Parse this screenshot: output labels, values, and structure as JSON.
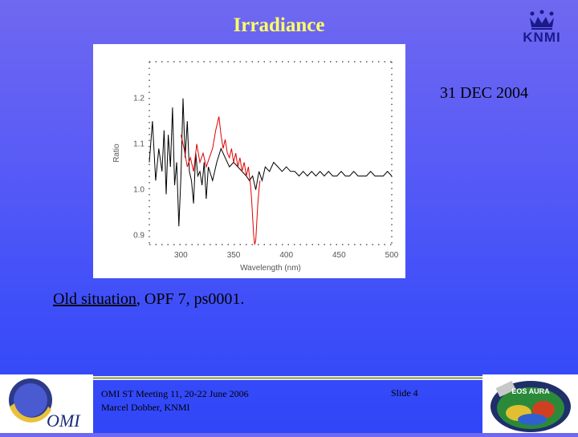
{
  "slide": {
    "title": "Irradiance",
    "date": "31 DEC 2004",
    "caption_underlined": "Old situation",
    "caption_rest": ", OPF 7, ps0001.",
    "footer_line1": "OMI ST Meeting 11, 20-22 June 2006",
    "footer_line2": "Marcel Dobber, KNMI",
    "slide_number": "Slide 4",
    "knmi_logo_text": "KNMI",
    "omi_logo_text": "OMI",
    "aura_logo_text": "EOS AURA",
    "colors": {
      "title": "#ffff66",
      "background_top": "#6f68f0",
      "background_bottom": "#2f46f8",
      "series_black": "#000000",
      "series_red": "#e00000"
    }
  },
  "chart_data": {
    "type": "line",
    "xlabel": "Wavelength (nm)",
    "ylabel": "Ratio",
    "xlim": [
      270,
      500
    ],
    "ylim": [
      0.88,
      1.28
    ],
    "xticks": [
      "300",
      "350",
      "400",
      "450",
      "500"
    ],
    "yticks": [
      "0.9",
      "1.0",
      "1.1",
      "1.2"
    ],
    "series": [
      {
        "color": "#000000",
        "points": [
          [
            270,
            1.06
          ],
          [
            273,
            1.15
          ],
          [
            276,
            1.02
          ],
          [
            279,
            1.09
          ],
          [
            282,
            1.04
          ],
          [
            284,
            1.13
          ],
          [
            286,
            0.99
          ],
          [
            288,
            1.12
          ],
          [
            290,
            1.05
          ],
          [
            292,
            1.18
          ],
          [
            294,
            1.01
          ],
          [
            296,
            1.06
          ],
          [
            298,
            0.92
          ],
          [
            300,
            1.03
          ],
          [
            302,
            1.2
          ],
          [
            304,
            1.07
          ],
          [
            306,
            1.15
          ],
          [
            308,
            1.04
          ],
          [
            310,
            1.02
          ],
          [
            312,
            0.97
          ],
          [
            314,
            1.08
          ],
          [
            316,
            1.03
          ],
          [
            318,
            1.04
          ],
          [
            320,
            1.01
          ],
          [
            322,
            1.06
          ],
          [
            324,
            0.98
          ],
          [
            326,
            1.05
          ],
          [
            330,
            1.02
          ],
          [
            334,
            1.06
          ],
          [
            338,
            1.09
          ],
          [
            342,
            1.07
          ],
          [
            346,
            1.05
          ],
          [
            350,
            1.06
          ],
          [
            354,
            1.05
          ],
          [
            358,
            1.04
          ],
          [
            362,
            1.03
          ],
          [
            365,
            1.02
          ],
          [
            368,
            1.03
          ],
          [
            371,
            1.0
          ],
          [
            374,
            1.04
          ],
          [
            377,
            1.02
          ],
          [
            380,
            1.05
          ],
          [
            384,
            1.04
          ],
          [
            388,
            1.06
          ],
          [
            392,
            1.05
          ],
          [
            396,
            1.04
          ],
          [
            400,
            1.05
          ],
          [
            404,
            1.04
          ],
          [
            408,
            1.04
          ],
          [
            412,
            1.03
          ],
          [
            416,
            1.04
          ],
          [
            420,
            1.03
          ],
          [
            424,
            1.04
          ],
          [
            428,
            1.03
          ],
          [
            432,
            1.04
          ],
          [
            436,
            1.03
          ],
          [
            440,
            1.04
          ],
          [
            444,
            1.03
          ],
          [
            448,
            1.03
          ],
          [
            452,
            1.04
          ],
          [
            456,
            1.03
          ],
          [
            460,
            1.03
          ],
          [
            464,
            1.04
          ],
          [
            468,
            1.03
          ],
          [
            472,
            1.03
          ],
          [
            476,
            1.03
          ],
          [
            480,
            1.04
          ],
          [
            484,
            1.03
          ],
          [
            488,
            1.03
          ],
          [
            492,
            1.03
          ],
          [
            496,
            1.04
          ],
          [
            500,
            1.03
          ]
        ]
      },
      {
        "color": "#e00000",
        "points": [
          [
            300,
            1.12
          ],
          [
            303,
            1.09
          ],
          [
            306,
            1.05
          ],
          [
            309,
            1.07
          ],
          [
            312,
            1.04
          ],
          [
            315,
            1.1
          ],
          [
            318,
            1.06
          ],
          [
            321,
            1.08
          ],
          [
            324,
            1.05
          ],
          [
            327,
            1.07
          ],
          [
            330,
            1.09
          ],
          [
            333,
            1.13
          ],
          [
            336,
            1.16
          ],
          [
            338,
            1.12
          ],
          [
            340,
            1.09
          ],
          [
            342,
            1.11
          ],
          [
            344,
            1.08
          ],
          [
            346,
            1.07
          ],
          [
            348,
            1.09
          ],
          [
            350,
            1.06
          ],
          [
            352,
            1.08
          ],
          [
            354,
            1.05
          ],
          [
            356,
            1.07
          ],
          [
            358,
            1.04
          ],
          [
            360,
            1.06
          ],
          [
            362,
            1.03
          ],
          [
            364,
            1.05
          ],
          [
            366,
            1.01
          ],
          [
            367,
            0.98
          ],
          [
            368,
            0.94
          ],
          [
            369,
            0.9
          ],
          [
            370,
            0.88
          ],
          [
            371,
            0.89
          ],
          [
            372,
            0.93
          ],
          [
            373,
            0.97
          ],
          [
            374,
            1.0
          ],
          [
            375,
            1.02
          ]
        ]
      }
    ]
  }
}
